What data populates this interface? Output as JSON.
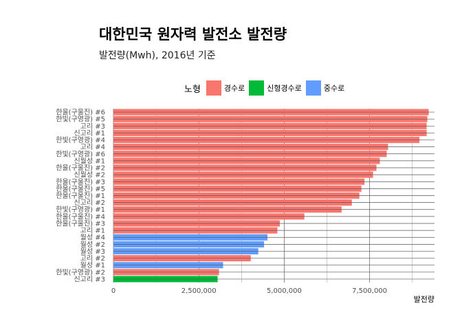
{
  "chart_data": {
    "type": "bar",
    "orientation": "horizontal",
    "title": "대한민국 원자력 발전소 발전량",
    "subtitle": "발전량(Mwh), 2016년 기준",
    "xlabel": "발전량",
    "ylabel": "",
    "xlim": [
      0,
      9400000
    ],
    "xticks": [
      0,
      2500000,
      5000000,
      7500000
    ],
    "xtick_labels": [
      "0",
      "2,500,000",
      "5,000,000",
      "7,500,000"
    ],
    "grid": true,
    "legend": {
      "title": "노형",
      "position": "top",
      "entries": [
        {
          "name": "경수로",
          "color": "#F8766D"
        },
        {
          "name": "신형경수로",
          "color": "#00BA38"
        },
        {
          "name": "중수로",
          "color": "#619CFF"
        }
      ]
    },
    "categories": [
      "한울(구울진) #6",
      "한빛(구영광) #5",
      "고리 #3",
      "신고리 #1",
      "한빛(구영광) #4",
      "고리 #4",
      "한빛(구영광) #6",
      "신월성 #1",
      "한울(구울진) #2",
      "신월성 #2",
      "한울(구울진) #3",
      "한울(구울진) #5",
      "한울(구울진) #1",
      "신고리 #2",
      "한빛(구영광) #1",
      "한울(구울진) #4",
      "한울(구울진) #3",
      "고리 #1",
      "월성 #4",
      "월성 #2",
      "월성 #3",
      "고리 #2",
      "월성 #1",
      "한빛(구영광) #2",
      "신고리 #3"
    ],
    "values": [
      9230000,
      9190000,
      9170000,
      9170000,
      8960000,
      8040000,
      8000000,
      7800000,
      7700000,
      7600000,
      7350000,
      7260000,
      7200000,
      6980000,
      6680000,
      5590000,
      4870000,
      4800000,
      4510000,
      4410000,
      4240000,
      4020000,
      3210000,
      3090000,
      3050000
    ],
    "types": [
      "경수로",
      "경수로",
      "경수로",
      "경수로",
      "경수로",
      "경수로",
      "경수로",
      "경수로",
      "경수로",
      "경수로",
      "경수로",
      "경수로",
      "경수로",
      "경수로",
      "경수로",
      "경수로",
      "경수로",
      "경수로",
      "중수로",
      "중수로",
      "중수로",
      "경수로",
      "중수로",
      "경수로",
      "신형경수로"
    ]
  }
}
